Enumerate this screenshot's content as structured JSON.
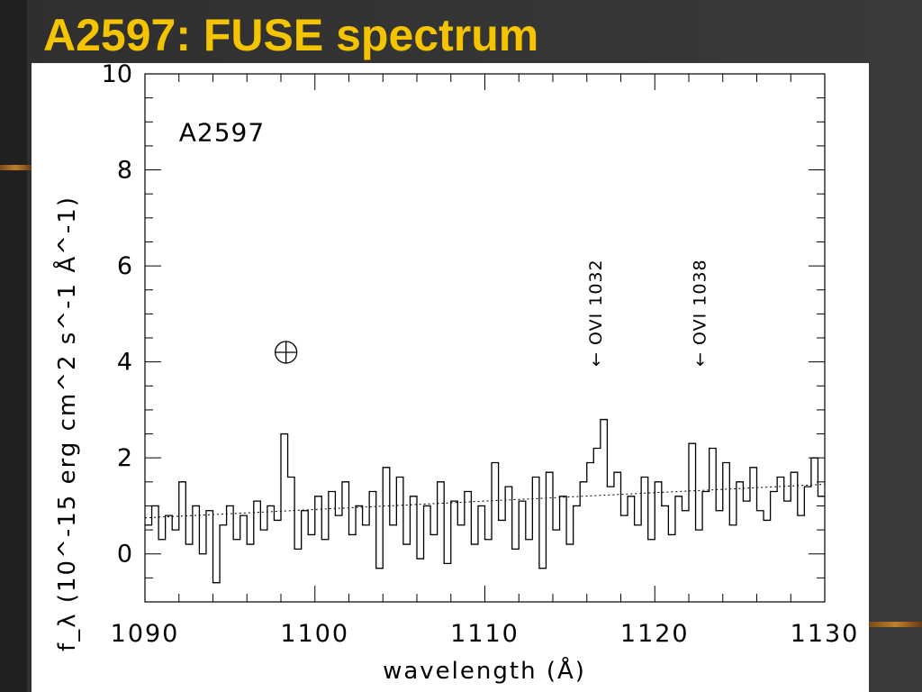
{
  "page": {
    "title": "A2597: FUSE spectrum"
  },
  "chart_data": {
    "type": "line",
    "title": "",
    "xlabel": "wavelength (Å)",
    "ylabel": "f_λ (10^-15 erg cm^2 s^-1 Å^-1)",
    "xlim": [
      1090,
      1130
    ],
    "ylim": [
      -1,
      10
    ],
    "xticks": [
      "1090",
      "1100",
      "1110",
      "1120",
      "1130"
    ],
    "yticks": [
      "0",
      "2",
      "4",
      "6",
      "8",
      "10"
    ],
    "annotations": [
      {
        "text": "A2597",
        "x": 1092,
        "y": 8.6
      },
      {
        "text": "← OVI 1032",
        "x": 1116.5,
        "y": 3.9
      },
      {
        "text": "← OVI 1038",
        "x": 1122.6,
        "y": 3.9
      }
    ],
    "earth_symbol": {
      "x": 1098.3,
      "y": 4.2
    },
    "continuum": {
      "x": [
        1090,
        1130
      ],
      "y": [
        0.75,
        1.45
      ]
    },
    "series": [
      {
        "x": [
          1090.0,
          1090.4,
          1090.8,
          1091.2,
          1091.6,
          1092.0,
          1092.4,
          1092.8,
          1093.2,
          1093.6,
          1094.0,
          1094.4,
          1094.8,
          1095.2,
          1095.6,
          1096.0,
          1096.4,
          1096.8,
          1097.2,
          1097.6,
          1098.0,
          1098.4,
          1098.8,
          1099.2,
          1099.6,
          1100.0,
          1100.4,
          1100.8,
          1101.2,
          1101.6,
          1102.0,
          1102.4,
          1102.8,
          1103.2,
          1103.6,
          1104.0,
          1104.4,
          1104.8,
          1105.2,
          1105.6,
          1106.0,
          1106.4,
          1106.8,
          1107.2,
          1107.6,
          1108.0,
          1108.4,
          1108.8,
          1109.2,
          1109.6,
          1110.0,
          1110.4,
          1110.8,
          1111.2,
          1111.6,
          1112.0,
          1112.4,
          1112.8,
          1113.2,
          1113.6,
          1114.0,
          1114.4,
          1114.8,
          1115.2,
          1115.6,
          1116.0,
          1116.4,
          1116.8,
          1117.2,
          1117.6,
          1118.0,
          1118.4,
          1118.8,
          1119.2,
          1119.6,
          1120.0,
          1120.4,
          1120.8,
          1121.2,
          1121.6,
          1122.0,
          1122.4,
          1122.8,
          1123.2,
          1123.6,
          1124.0,
          1124.4,
          1124.8,
          1125.2,
          1125.6,
          1126.0,
          1126.4,
          1126.8,
          1127.2,
          1127.6,
          1128.0,
          1128.4,
          1128.8,
          1129.2,
          1129.6
        ],
        "y": [
          0.6,
          1.0,
          0.3,
          0.8,
          0.5,
          1.5,
          0.2,
          1.0,
          0.0,
          0.9,
          -0.6,
          0.6,
          1.0,
          0.3,
          0.8,
          0.2,
          1.1,
          0.5,
          1.0,
          0.7,
          2.5,
          1.6,
          0.1,
          0.9,
          0.4,
          1.2,
          0.3,
          1.3,
          0.8,
          1.5,
          0.4,
          1.0,
          0.6,
          1.3,
          -0.3,
          1.8,
          0.6,
          1.6,
          0.2,
          1.2,
          -0.1,
          1.0,
          0.4,
          1.5,
          -0.2,
          1.1,
          0.6,
          1.3,
          0.2,
          1.0,
          0.3,
          1.9,
          0.7,
          1.4,
          0.1,
          1.1,
          0.3,
          1.6,
          -0.3,
          1.7,
          0.5,
          1.2,
          0.2,
          1.0,
          1.5,
          1.9,
          2.2,
          2.8,
          1.4,
          1.7,
          0.8,
          1.2,
          0.6,
          1.6,
          0.3,
          1.5,
          1.0,
          0.4,
          1.2,
          0.9,
          2.3,
          0.5,
          1.3,
          2.2,
          0.9,
          1.9,
          0.6,
          1.5,
          1.1,
          1.8,
          0.9,
          0.7,
          1.3,
          1.6,
          1.1,
          1.7,
          0.8,
          1.4,
          2.0,
          1.2
        ]
      }
    ]
  }
}
